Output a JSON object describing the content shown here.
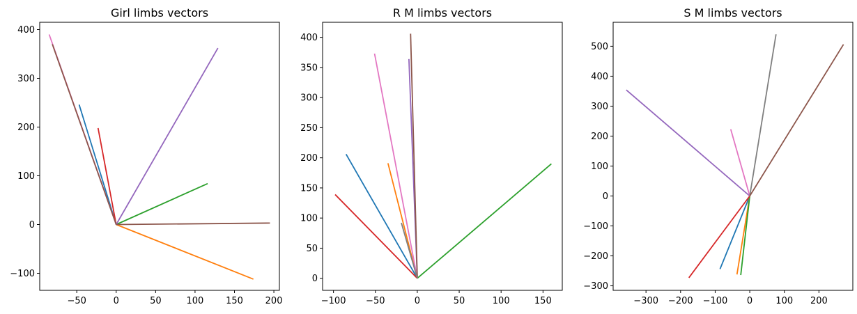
{
  "colors": [
    "#1f77b4",
    "#ff7f0e",
    "#2ca02c",
    "#d62728",
    "#9467bd",
    "#8c564b",
    "#e377c2",
    "#7f7f7f"
  ],
  "chart_data": [
    {
      "type": "line",
      "title": "Girl limbs vectors",
      "xlabel": "",
      "ylabel": "",
      "xlim": [
        -97,
        207
      ],
      "ylim": [
        -135,
        415
      ],
      "xticks": [
        -50,
        0,
        50,
        100,
        150,
        200
      ],
      "yticks": [
        -100,
        0,
        100,
        200,
        300,
        400
      ],
      "series": [
        {
          "color": "#1f77b4",
          "x": [
            0,
            -47
          ],
          "y": [
            0,
            246
          ]
        },
        {
          "color": "#ff7f0e",
          "x": [
            0,
            174
          ],
          "y": [
            0,
            -112
          ]
        },
        {
          "color": "#2ca02c",
          "x": [
            0,
            116
          ],
          "y": [
            0,
            84
          ]
        },
        {
          "color": "#d62728",
          "x": [
            0,
            -23
          ],
          "y": [
            0,
            198
          ]
        },
        {
          "color": "#9467bd",
          "x": [
            0,
            129
          ],
          "y": [
            0,
            362
          ]
        },
        {
          "color": "#e377c2",
          "x": [
            0,
            -85
          ],
          "y": [
            0,
            390
          ]
        },
        {
          "color": "#8c564b",
          "x": [
            0,
            -81
          ],
          "y": [
            0,
            370
          ]
        },
        {
          "color": "#8c564b",
          "x": [
            0,
            195
          ],
          "y": [
            0,
            3
          ]
        }
      ]
    },
    {
      "type": "line",
      "title": "R M limbs vectors",
      "xlabel": "",
      "ylabel": "",
      "xlim": [
        -113,
        173
      ],
      "ylim": [
        -20,
        425
      ],
      "xticks": [
        -100,
        -50,
        0,
        50,
        100,
        150
      ],
      "yticks": [
        0,
        50,
        100,
        150,
        200,
        250,
        300,
        350,
        400
      ],
      "series": [
        {
          "color": "#1f77b4",
          "x": [
            0,
            -85
          ],
          "y": [
            0,
            206
          ]
        },
        {
          "color": "#ff7f0e",
          "x": [
            0,
            -35
          ],
          "y": [
            0,
            191
          ]
        },
        {
          "color": "#2ca02c",
          "x": [
            0,
            160
          ],
          "y": [
            0,
            190
          ]
        },
        {
          "color": "#d62728",
          "x": [
            0,
            -98
          ],
          "y": [
            0,
            139
          ]
        },
        {
          "color": "#9467bd",
          "x": [
            0,
            -10
          ],
          "y": [
            0,
            364
          ]
        },
        {
          "color": "#e377c2",
          "x": [
            0,
            -51
          ],
          "y": [
            0,
            373
          ]
        },
        {
          "color": "#8c564b",
          "x": [
            0,
            -8
          ],
          "y": [
            0,
            406
          ]
        },
        {
          "color": "#7f7f7f",
          "x": [
            0,
            -19
          ],
          "y": [
            0,
            92
          ]
        }
      ]
    },
    {
      "type": "line",
      "title": "S M limbs vectors",
      "xlabel": "",
      "ylabel": "",
      "xlim": [
        -395,
        298
      ],
      "ylim": [
        -315,
        580
      ],
      "xticks": [
        -300,
        -200,
        -100,
        0,
        100,
        200
      ],
      "yticks": [
        -300,
        -200,
        -100,
        0,
        100,
        200,
        300,
        400,
        500
      ],
      "series": [
        {
          "color": "#1f77b4",
          "x": [
            0,
            -86
          ],
          "y": [
            0,
            -244
          ]
        },
        {
          "color": "#ff7f0e",
          "x": [
            0,
            -37
          ],
          "y": [
            0,
            -262
          ]
        },
        {
          "color": "#2ca02c",
          "x": [
            0,
            -26
          ],
          "y": [
            0,
            -264
          ]
        },
        {
          "color": "#d62728",
          "x": [
            0,
            -176
          ],
          "y": [
            0,
            -273
          ]
        },
        {
          "color": "#9467bd",
          "x": [
            0,
            -357
          ],
          "y": [
            0,
            354
          ]
        },
        {
          "color": "#e377c2",
          "x": [
            0,
            -55
          ],
          "y": [
            0,
            223
          ]
        },
        {
          "color": "#7f7f7f",
          "x": [
            0,
            76
          ],
          "y": [
            0,
            540
          ]
        },
        {
          "color": "#8c564b",
          "x": [
            0,
            271
          ],
          "y": [
            0,
            506
          ]
        }
      ]
    }
  ]
}
